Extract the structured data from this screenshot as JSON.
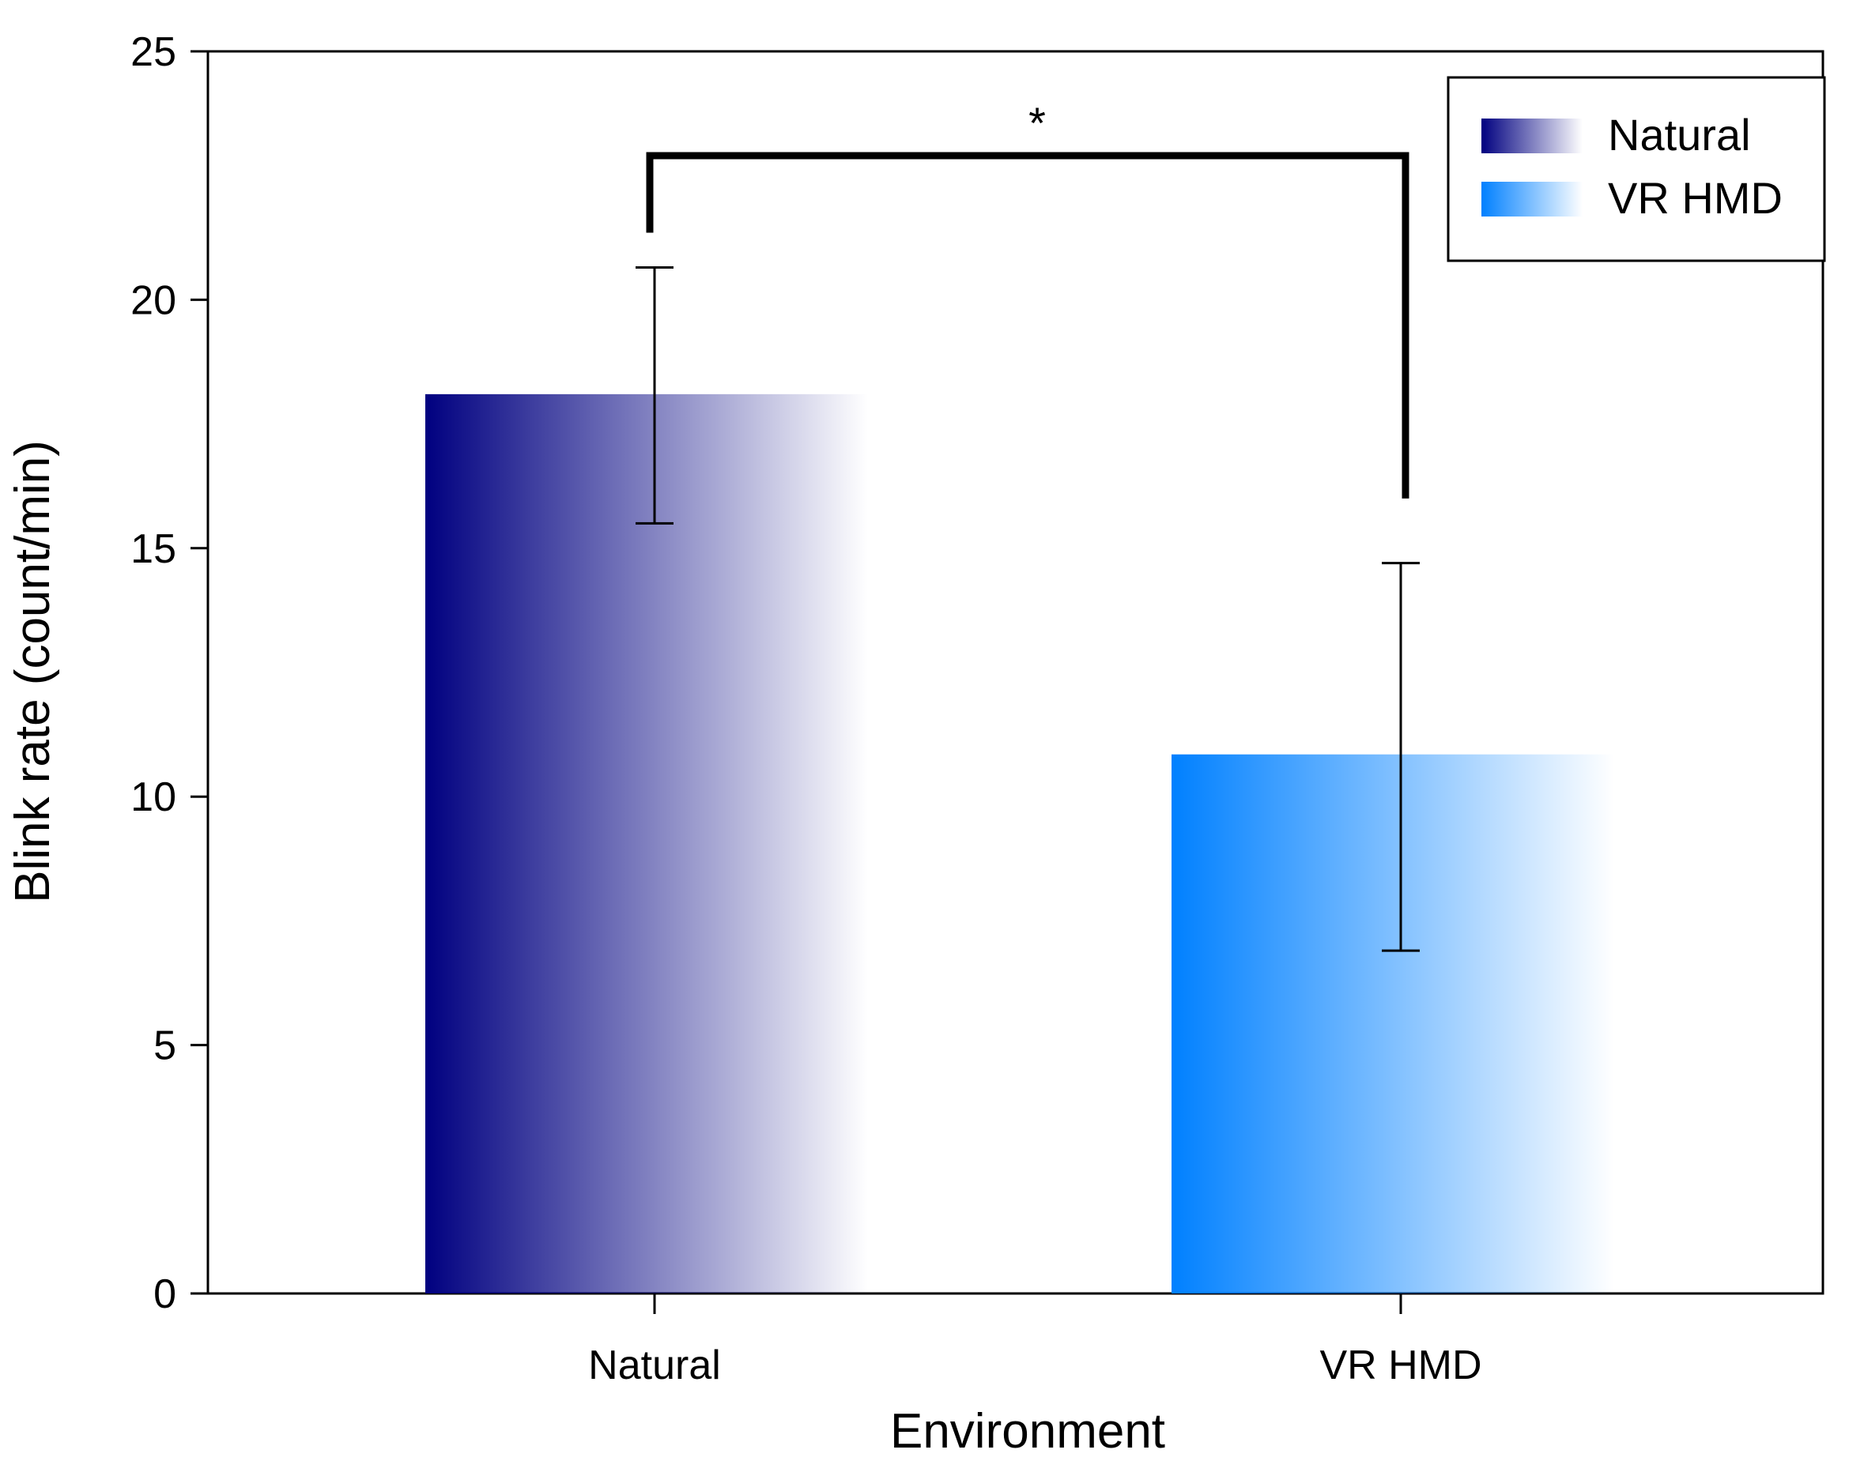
{
  "chart_data": {
    "type": "bar",
    "title": "",
    "xlabel": "Environment",
    "ylabel": "Blink rate (count/min)",
    "ylim": [
      0,
      25
    ],
    "yticks": [
      "0",
      "5",
      "10",
      "15",
      "20",
      "25"
    ],
    "categories": [
      "Natural",
      "VR HMD"
    ],
    "values": [
      18.1,
      10.85
    ],
    "error_upper": [
      20.65,
      14.7
    ],
    "error_lower": [
      15.5,
      6.9
    ],
    "series_colors": [
      "#000080",
      "#0080ff"
    ],
    "legend": {
      "position": "top-right",
      "entries": [
        {
          "label": "Natural",
          "color": "#000080"
        },
        {
          "label": "VR HMD",
          "color": "#0080ff"
        }
      ]
    },
    "significance": {
      "label": "*",
      "between": [
        "Natural",
        "VR HMD"
      ],
      "bracket_y": 22.9,
      "left_end_y": 21.35,
      "right_end_y": 16.0
    },
    "grid": false
  }
}
